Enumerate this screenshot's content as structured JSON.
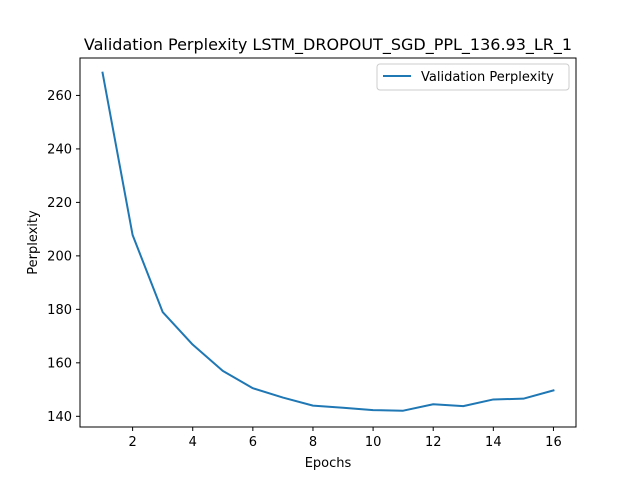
{
  "chart_data": {
    "type": "line",
    "title": "Validation Perplexity LSTM_DROPOUT_SGD_PPL_136.93_LR_1",
    "xlabel": "Epochs",
    "ylabel": "Perplexity",
    "x": [
      1,
      2,
      3,
      4,
      5,
      6,
      7,
      8,
      9,
      10,
      11,
      12,
      13,
      14,
      15,
      16
    ],
    "series": [
      {
        "name": "Validation Perplexity",
        "color": "#1f77b4",
        "values": [
          268.5,
          207.8,
          179.0,
          166.8,
          157.0,
          150.5,
          147.0,
          144.0,
          143.2,
          142.3,
          142.1,
          144.5,
          143.8,
          146.3,
          146.6,
          149.7
        ]
      }
    ],
    "xlim": [
      0.25,
      16.75
    ],
    "ylim": [
      136.0,
      274.0
    ],
    "xticks": [
      2,
      4,
      6,
      8,
      10,
      12,
      14,
      16
    ],
    "yticks": [
      140,
      160,
      180,
      200,
      220,
      240,
      260
    ],
    "grid": false,
    "legend_position": "top-right"
  }
}
